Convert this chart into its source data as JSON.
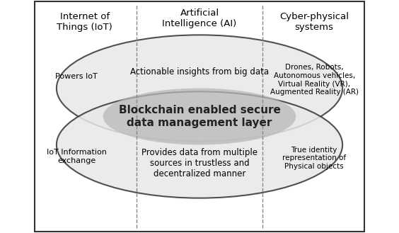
{
  "background_color": "#f0f0f0",
  "outer_bg": "#ffffff",
  "title_iot": "Internet of\nThings (IoT)",
  "title_ai": "Artificial\nIntelligence (AI)",
  "title_cps": "Cyber-physical\nsystems",
  "text_powers_iot": "Powers IoT",
  "text_actionable": "Actionable insights from big data",
  "text_drones": "Drones, Robots,\nAutonomous vehicles,\nVirtual Reality (VR),\nAugmented Reality (AR)",
  "text_blockchain": "Blockchain enabled secure\ndata management layer",
  "text_iot_info": "IoT Information\nexchange",
  "text_provides": "Provides data from multiple\nsources in trustless and\ndecentralized manner",
  "text_true_identity": "True identity\nrepresentation of\nPhysical objects",
  "ellipse_top_color": "#d8d8d8",
  "ellipse_bottom_color": "#d8d8d8",
  "ellipse_center_color": "#c0c0c0",
  "ellipse_edge_color": "#333333",
  "dashed_line_color": "#888888",
  "border_color": "#333333"
}
